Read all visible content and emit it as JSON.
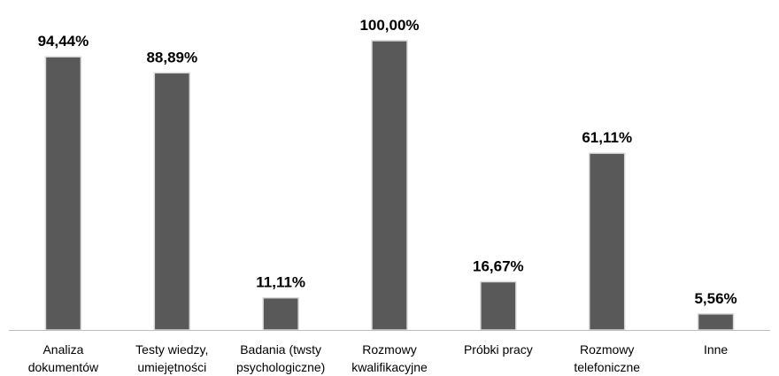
{
  "chart_data": {
    "type": "bar",
    "categories": [
      [
        "Analiza",
        "dokumentów"
      ],
      [
        "Testy wiedzy,",
        "umiejętności"
      ],
      [
        "Badania (twsty",
        "psychologiczne)"
      ],
      [
        "Rozmowy",
        "kwalifikacyjne"
      ],
      [
        "Próbki pracy"
      ],
      [
        "Rozmowy",
        "telefoniczne"
      ],
      [
        "Inne"
      ]
    ],
    "values": [
      94.44,
      88.89,
      11.11,
      100.0,
      16.67,
      61.11,
      5.56
    ],
    "data_labels": [
      "94,44%",
      "88,89%",
      "11,11%",
      "100,00%",
      "16,67%",
      "61,11%",
      "5,56%"
    ],
    "ylim": [
      0,
      100
    ],
    "grid": false,
    "legend": "none",
    "colors": {
      "bar_fill": "#595959",
      "bar_edge": "#d9d9d9",
      "axis": "#bfbfbf"
    }
  }
}
